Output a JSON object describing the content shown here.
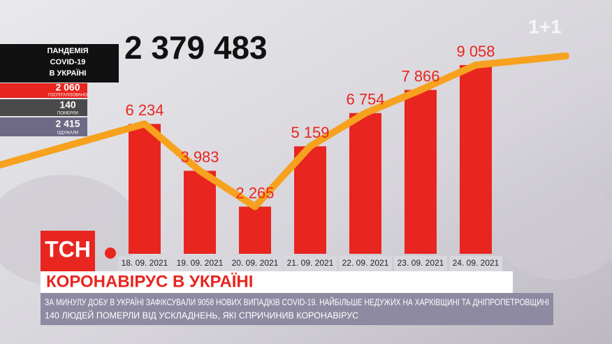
{
  "chart_data": {
    "type": "bar",
    "categories": [
      "18. 09. 2021",
      "19. 09. 2021",
      "20. 09. 2021",
      "21. 09. 2021",
      "22. 09. 2021",
      "23. 09. 2021",
      "24. 09. 2021"
    ],
    "values": [
      6234,
      3983,
      2265,
      5159,
      6754,
      7866,
      9058
    ],
    "value_labels": [
      "6 234",
      "3 983",
      "2 265",
      "5 159",
      "6 754",
      "7 866",
      "9 058"
    ],
    "color": "#e8251f",
    "line_color": "#f6a21e"
  },
  "total": "2 379 483",
  "panel": {
    "title": [
      "ПАНДЕМІЯ",
      "COVID-19",
      "В УКРАЇНІ"
    ],
    "stats": [
      {
        "value": "2 060",
        "label": "ГОСПІТАЛІЗОВАНО"
      },
      {
        "value": "140",
        "label": "ПОМЕРЛИ"
      },
      {
        "value": "2 415",
        "label": "ОДУЖАЛИ"
      }
    ]
  },
  "logo": "1+1",
  "brand": "ТСН",
  "headline": "КОРОНАВІРУС В УКРАЇНІ",
  "ticker": [
    "ЗА МИНУЛУ ДОБУ В УКРАЇНІ ЗАФІКСУВАЛИ 9058 НОВИХ ВИПАДКІВ COVID-19. НАЙБІЛЬШЕ НЕДУЖИХ НА ХАРКІВЩИНІ ТА ДНІПРОПЕТРОВЩИНІ",
    "140 ЛЮДЕЙ ПОМЕРЛИ ВІД УСКЛАДНЕНЬ, ЯКІ СПРИЧИНИВ КОРОНАВІРУС"
  ]
}
